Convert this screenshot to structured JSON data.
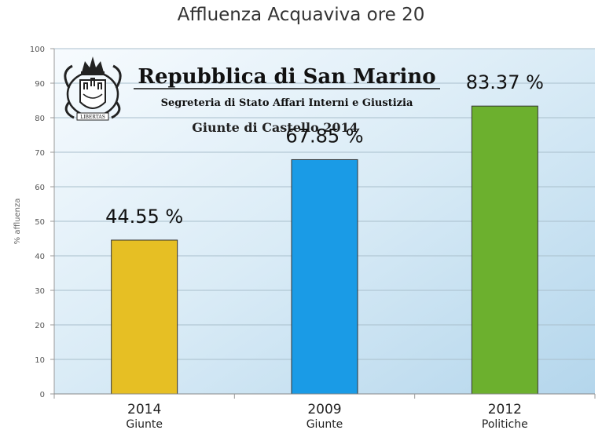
{
  "chart_data": {
    "type": "bar",
    "title": "Affluenza Acquaviva ore 20",
    "xlabel": "",
    "ylabel": "% affluenza",
    "ylim": [
      0,
      100
    ],
    "yticks": [
      0,
      10,
      20,
      30,
      40,
      50,
      60,
      70,
      80,
      90,
      100
    ],
    "grid": true,
    "categories": [
      "2014",
      "2009",
      "2012"
    ],
    "category_sublabels": [
      "Giunte",
      "Giunte",
      "Politiche"
    ],
    "values": [
      44.55,
      67.85,
      83.37
    ],
    "data_labels": [
      "44.55 %",
      "67.85 %",
      "83.37 %"
    ],
    "bar_colors": [
      "#e6bf24",
      "#1a9be6",
      "#6cb02e"
    ]
  },
  "banner": {
    "title": "Repubblica di San Marino",
    "subtitle": "Segreteria di Stato Affari Interni e Giustizia",
    "subtitle2": "Giunte di Castello 2014",
    "seal_text": "LIBERTAS"
  }
}
